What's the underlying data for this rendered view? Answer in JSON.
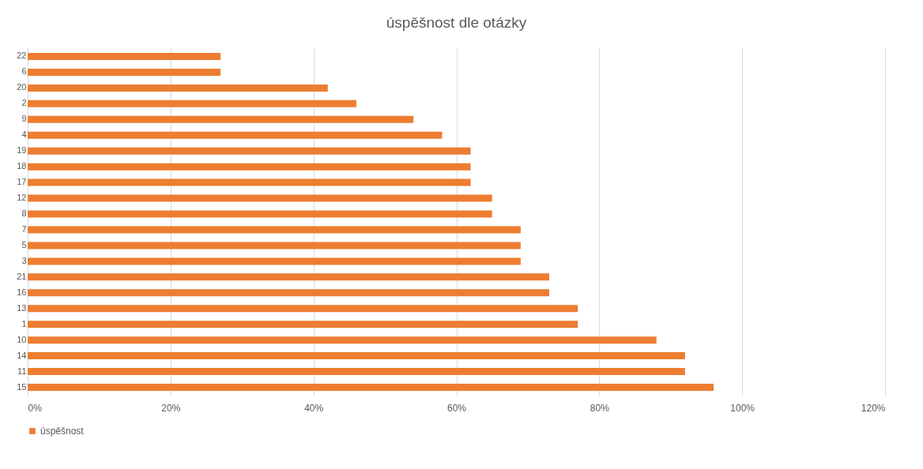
{
  "chart_data": {
    "type": "bar",
    "orientation": "horizontal",
    "title": "úspěšnost dle otázky",
    "categories": [
      "22",
      "6",
      "20",
      "2",
      "9",
      "4",
      "19",
      "18",
      "17",
      "12",
      "8",
      "7",
      "5",
      "3",
      "21",
      "16",
      "13",
      "1",
      "10",
      "14",
      "11",
      "15"
    ],
    "series": [
      {
        "name": "úspěšnost",
        "color": "#ed7d31",
        "values": [
          27,
          27,
          42,
          46,
          54,
          58,
          62,
          62,
          62,
          65,
          65,
          69,
          69,
          69,
          73,
          73,
          77,
          77,
          88,
          92,
          92,
          96
        ]
      }
    ],
    "xlim": [
      0,
      120
    ],
    "xticks": [
      {
        "value": 0,
        "label": "0%"
      },
      {
        "value": 20,
        "label": "20%"
      },
      {
        "value": 40,
        "label": "40%"
      },
      {
        "value": 60,
        "label": "60%"
      },
      {
        "value": 80,
        "label": "80%"
      },
      {
        "value": 100,
        "label": "100%"
      },
      {
        "value": 120,
        "label": "120%"
      }
    ],
    "grid": "x",
    "legend": "bottom"
  }
}
